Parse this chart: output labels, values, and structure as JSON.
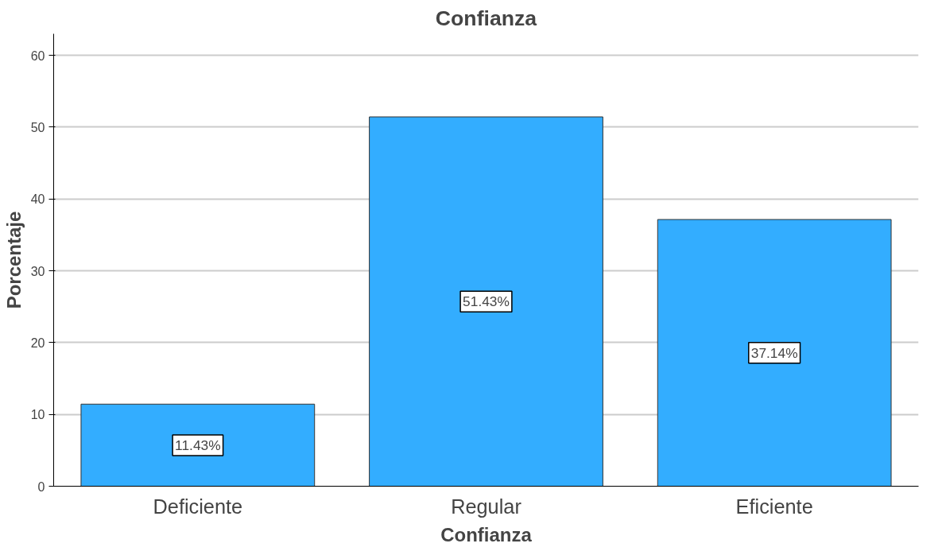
{
  "chart_data": {
    "type": "bar",
    "title": "Confianza",
    "xlabel": "Confianza",
    "ylabel": "Porcentaje",
    "categories": [
      "Deficiente",
      "Regular",
      "Eficiente"
    ],
    "values": [
      11.43,
      51.43,
      37.14
    ],
    "value_labels": [
      "11.43%",
      "51.43%",
      "37.14%"
    ],
    "color": "#33adff",
    "ylim": [
      0,
      63
    ],
    "yticks": [
      0,
      10,
      20,
      30,
      40,
      50,
      60
    ],
    "grid": "y"
  }
}
